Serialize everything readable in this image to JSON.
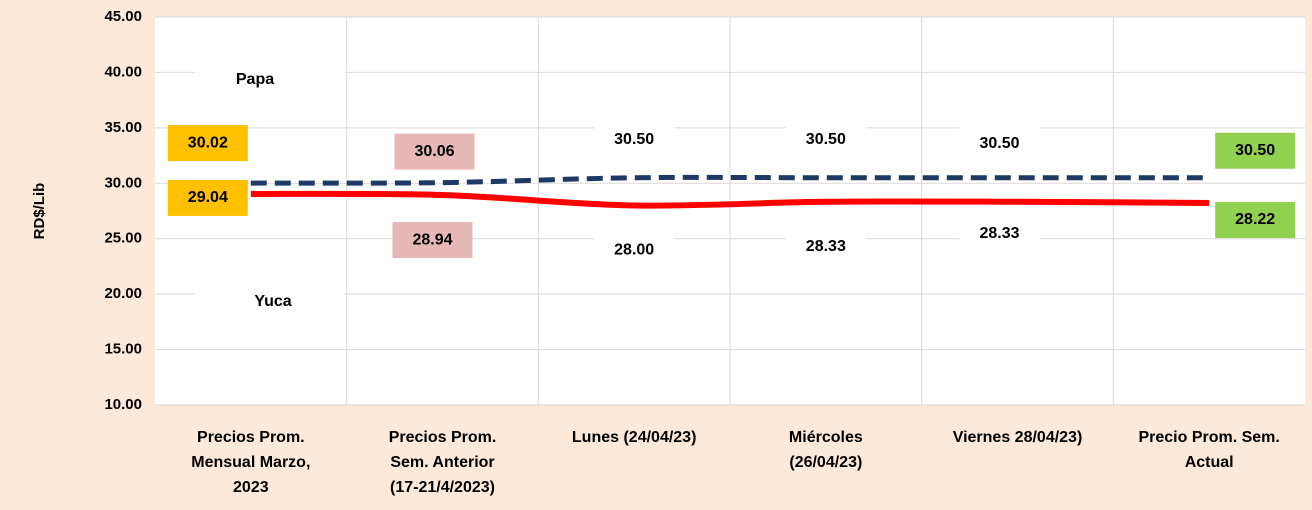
{
  "chart_data": {
    "type": "line",
    "y_axis_label": "RD$/Lib",
    "categories": [
      "Precios Prom.\nMensual Marzo,\n2023",
      "Precios Prom.\nSem. Anterior\n(17-21/4/2023)",
      "Lunes  (24/04/23)",
      "Miércoles\n(26/04/23)",
      "Viernes  28/04/23)",
      "Precio Prom. Sem.\nActual"
    ],
    "series": [
      {
        "name": "Papa",
        "color": "#1f3864",
        "dashed": true,
        "values": [
          30.02,
          30.06,
          30.5,
          30.5,
          30.5,
          30.5
        ],
        "value_labels": [
          "30.02",
          "30.06",
          "30.50",
          "30.50",
          "30.50",
          "30.50"
        ]
      },
      {
        "name": "Yuca",
        "color": "#ff0000",
        "dashed": false,
        "values": [
          29.04,
          28.94,
          28.0,
          28.33,
          28.33,
          28.22
        ],
        "value_labels": [
          "29.04",
          "28.94",
          "28.00",
          "28.33",
          "28.33",
          "28.22"
        ]
      }
    ],
    "label_backgrounds": [
      "#ffc000",
      "#e6b8b7",
      "#ffffff",
      "#ffffff",
      "#ffffff",
      "#92d050"
    ],
    "ylim": [
      10,
      45
    ],
    "yticks": [
      {
        "value": 10,
        "label": "10.00"
      },
      {
        "value": 15,
        "label": "15.00"
      },
      {
        "value": 20,
        "label": "20.00"
      },
      {
        "value": 25,
        "label": "25.00"
      },
      {
        "value": 30,
        "label": "30.00"
      },
      {
        "value": 35,
        "label": "35.00"
      },
      {
        "value": 40,
        "label": "40.00"
      },
      {
        "value": 45,
        "label": "45.00"
      }
    ],
    "grid": true
  }
}
